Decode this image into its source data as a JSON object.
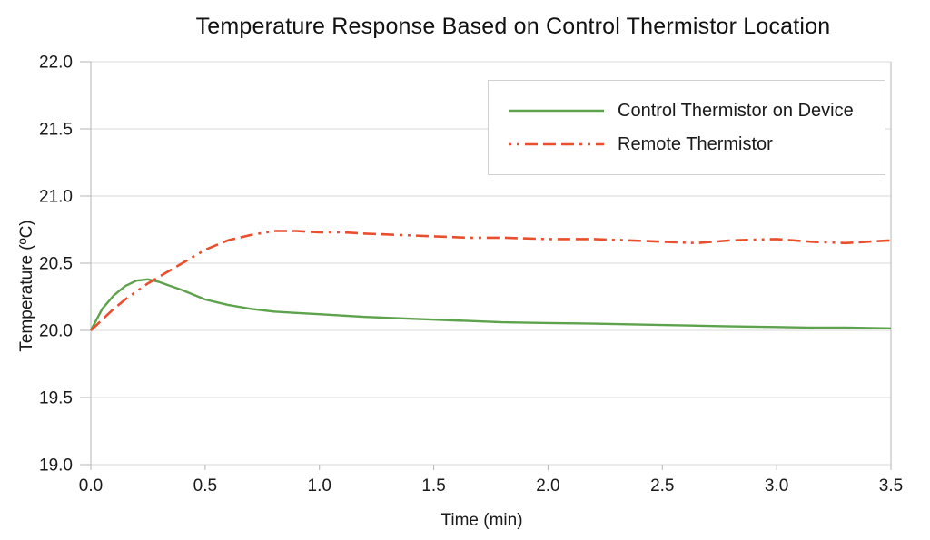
{
  "chart_data": {
    "type": "line",
    "title": "Temperature Response Based on Control Thermistor Location",
    "xlabel": "Time (min)",
    "ylabel": "Temperature (ºC)",
    "xlim": [
      0,
      3.5
    ],
    "ylim": [
      19.0,
      22.0
    ],
    "xticks": [
      0.0,
      0.5,
      1.0,
      1.5,
      2.0,
      2.5,
      3.0,
      3.5
    ],
    "yticks": [
      19.0,
      19.5,
      20.0,
      20.5,
      21.0,
      21.5,
      22.0
    ],
    "grid": "horizontal-only",
    "legend_position": "top-right-inside",
    "background_color": "#ffffff",
    "grid_color": "#d9d9d9",
    "axis_color": "#b5b5b5",
    "text_color": "#1a1a1a",
    "x": [
      0,
      0.05,
      0.1,
      0.15,
      0.2,
      0.25,
      0.3,
      0.35,
      0.4,
      0.5,
      0.6,
      0.7,
      0.8,
      0.9,
      1.0,
      1.1,
      1.2,
      1.35,
      1.5,
      1.65,
      1.8,
      2.0,
      2.2,
      2.35,
      2.5,
      2.65,
      2.8,
      3.0,
      3.15,
      3.3,
      3.5
    ],
    "series": [
      {
        "name": "Control Thermistor on Device",
        "color": "#5da24c",
        "line_style": "solid",
        "line_width": 2.4,
        "values": [
          20.0,
          20.16,
          20.26,
          20.33,
          20.37,
          20.38,
          20.36,
          20.33,
          20.3,
          20.23,
          20.19,
          20.16,
          20.14,
          20.13,
          20.12,
          20.11,
          20.1,
          20.09,
          20.08,
          20.07,
          20.06,
          20.055,
          20.05,
          20.045,
          20.04,
          20.035,
          20.03,
          20.025,
          20.02,
          20.02,
          20.015
        ]
      },
      {
        "name": "Remote Thermistor",
        "color": "#e94f2d",
        "line_style": "three-dashes-two-dots",
        "line_width": 2.6,
        "values": [
          20.0,
          20.08,
          20.16,
          20.23,
          20.29,
          20.35,
          20.4,
          20.45,
          20.5,
          20.6,
          20.67,
          20.71,
          20.74,
          20.74,
          20.73,
          20.73,
          20.72,
          20.71,
          20.7,
          20.69,
          20.69,
          20.68,
          20.68,
          20.67,
          20.66,
          20.65,
          20.67,
          20.68,
          20.66,
          20.65,
          20.67
        ]
      }
    ]
  }
}
